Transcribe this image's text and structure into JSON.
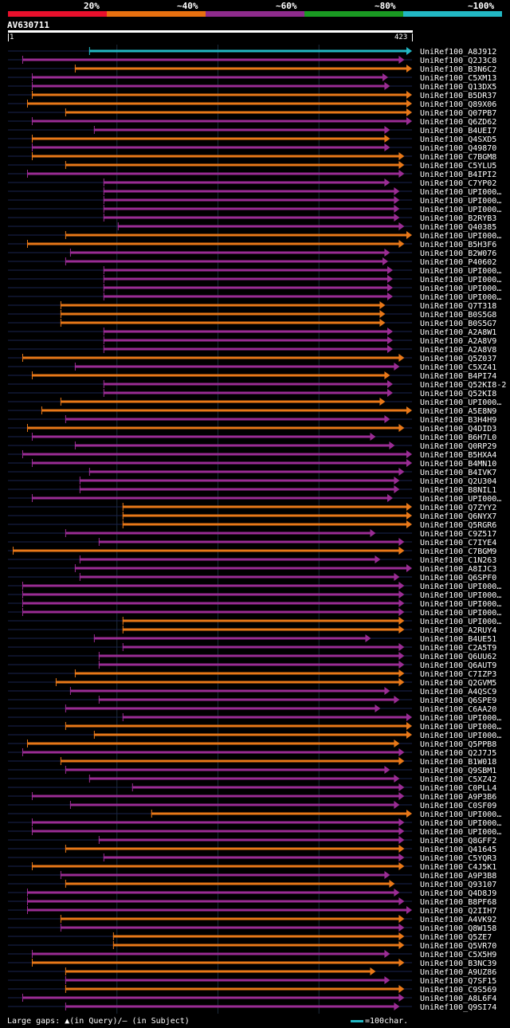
{
  "chart_data": {
    "type": "bar",
    "title": "AV630711",
    "query": {
      "name": "AV630711",
      "start": 1,
      "end": 423
    },
    "identity_scale": [
      {
        "label": "20%",
        "color": "#e8102c"
      },
      {
        "label": "~40%",
        "color": "#e87010"
      },
      {
        "label": "~60%",
        "color": "#8e2b8c"
      },
      {
        "label": "~80%",
        "color": "#1a9a22"
      },
      {
        "label": "~100%",
        "color": "#22b8c4"
      }
    ],
    "x_range": [
      0,
      423
    ],
    "bar_colors": {
      "orange": "#e87818",
      "purple": "#9a2c94",
      "cyan": "#22b8c4"
    },
    "hits": [
      {
        "name": "UniRef100_A8J912",
        "color": "cyan",
        "start": 85,
        "end": 423
      },
      {
        "name": "UniRef100_Q2J3C8",
        "color": "purple",
        "start": 15,
        "end": 415
      },
      {
        "name": "UniRef100_B3N6C2",
        "color": "orange",
        "start": 70,
        "end": 423
      },
      {
        "name": "UniRef100_C5XM13",
        "color": "purple",
        "start": 25,
        "end": 398
      },
      {
        "name": "UniRef100_Q13DX5",
        "color": "purple",
        "start": 25,
        "end": 400
      },
      {
        "name": "UniRef100_B5DR37",
        "color": "orange",
        "start": 25,
        "end": 423
      },
      {
        "name": "UniRef100_Q89X06",
        "color": "orange",
        "start": 20,
        "end": 423
      },
      {
        "name": "UniRef100_Q07PB7",
        "color": "orange",
        "start": 60,
        "end": 423
      },
      {
        "name": "UniRef100_Q6ZD62",
        "color": "purple",
        "start": 25,
        "end": 423
      },
      {
        "name": "UniRef100_B4UEI7",
        "color": "purple",
        "start": 90,
        "end": 400
      },
      {
        "name": "UniRef100_Q4SXD5",
        "color": "orange",
        "start": 25,
        "end": 400
      },
      {
        "name": "UniRef100_Q49870",
        "color": "purple",
        "start": 25,
        "end": 400
      },
      {
        "name": "UniRef100_C7BGM8",
        "color": "orange",
        "start": 25,
        "end": 415
      },
      {
        "name": "UniRef100_C5YLU5",
        "color": "orange",
        "start": 60,
        "end": 415
      },
      {
        "name": "UniRef100_B4IPI2",
        "color": "purple",
        "start": 20,
        "end": 415
      },
      {
        "name": "UniRef100_C7YP02",
        "color": "purple",
        "start": 100,
        "end": 400
      },
      {
        "name": "UniRef100_UPI000…",
        "color": "purple",
        "start": 100,
        "end": 410
      },
      {
        "name": "UniRef100_UPI000…",
        "color": "purple",
        "start": 100,
        "end": 410
      },
      {
        "name": "UniRef100_UPI000…",
        "color": "purple",
        "start": 100,
        "end": 410
      },
      {
        "name": "UniRef100_B2RYB3",
        "color": "purple",
        "start": 100,
        "end": 410
      },
      {
        "name": "UniRef100_Q40385",
        "color": "purple",
        "start": 115,
        "end": 415
      },
      {
        "name": "UniRef100_UPI000…",
        "color": "orange",
        "start": 60,
        "end": 423
      },
      {
        "name": "UniRef100_B5H3F6",
        "color": "orange",
        "start": 20,
        "end": 415
      },
      {
        "name": "UniRef100_B2W076",
        "color": "purple",
        "start": 65,
        "end": 400
      },
      {
        "name": "UniRef100_P40602",
        "color": "purple",
        "start": 60,
        "end": 398
      },
      {
        "name": "UniRef100_UPI000…",
        "color": "purple",
        "start": 100,
        "end": 403
      },
      {
        "name": "UniRef100_UPI000…",
        "color": "purple",
        "start": 100,
        "end": 403
      },
      {
        "name": "UniRef100_UPI000…",
        "color": "purple",
        "start": 100,
        "end": 403
      },
      {
        "name": "UniRef100_UPI000…",
        "color": "purple",
        "start": 100,
        "end": 403
      },
      {
        "name": "UniRef100_Q7T318",
        "color": "orange",
        "start": 55,
        "end": 395
      },
      {
        "name": "UniRef100_B0S5G8",
        "color": "orange",
        "start": 55,
        "end": 395
      },
      {
        "name": "UniRef100_B0S5G7",
        "color": "orange",
        "start": 55,
        "end": 395
      },
      {
        "name": "UniRef100_A2A8W1",
        "color": "purple",
        "start": 100,
        "end": 403
      },
      {
        "name": "UniRef100_A2A8V9",
        "color": "purple",
        "start": 100,
        "end": 403
      },
      {
        "name": "UniRef100_A2A8V8",
        "color": "purple",
        "start": 100,
        "end": 403
      },
      {
        "name": "UniRef100_Q5Z037",
        "color": "orange",
        "start": 15,
        "end": 415
      },
      {
        "name": "UniRef100_C5XZ41",
        "color": "purple",
        "start": 70,
        "end": 410
      },
      {
        "name": "UniRef100_B4PI74",
        "color": "orange",
        "start": 25,
        "end": 400
      },
      {
        "name": "UniRef100_Q52KI8-2",
        "color": "purple",
        "start": 100,
        "end": 403
      },
      {
        "name": "UniRef100_Q52KI8",
        "color": "purple",
        "start": 100,
        "end": 403
      },
      {
        "name": "UniRef100_UPI000…",
        "color": "orange",
        "start": 55,
        "end": 395
      },
      {
        "name": "UniRef100_A5E8N9",
        "color": "orange",
        "start": 35,
        "end": 423
      },
      {
        "name": "UniRef100_B3H4H9",
        "color": "purple",
        "start": 60,
        "end": 400
      },
      {
        "name": "UniRef100_Q4DID3",
        "color": "orange",
        "start": 20,
        "end": 415
      },
      {
        "name": "UniRef100_B6H7L0",
        "color": "purple",
        "start": 25,
        "end": 385
      },
      {
        "name": "UniRef100_Q0RP29",
        "color": "purple",
        "start": 70,
        "end": 405
      },
      {
        "name": "UniRef100_B5HXA4",
        "color": "purple",
        "start": 15,
        "end": 423
      },
      {
        "name": "UniRef100_B4MN10",
        "color": "purple",
        "start": 25,
        "end": 423
      },
      {
        "name": "UniRef100_B4IVK7",
        "color": "purple",
        "start": 85,
        "end": 415
      },
      {
        "name": "UniRef100_Q2U304",
        "color": "purple",
        "start": 75,
        "end": 410
      },
      {
        "name": "UniRef100_B8NIL1",
        "color": "purple",
        "start": 75,
        "end": 410
      },
      {
        "name": "UniRef100_UPI000…",
        "color": "purple",
        "start": 25,
        "end": 403
      },
      {
        "name": "UniRef100_Q7ZYY2",
        "color": "orange",
        "start": 120,
        "end": 423
      },
      {
        "name": "UniRef100_Q6NYX7",
        "color": "orange",
        "start": 120,
        "end": 423
      },
      {
        "name": "UniRef100_Q5RGR6",
        "color": "orange",
        "start": 120,
        "end": 423
      },
      {
        "name": "UniRef100_C9Z517",
        "color": "purple",
        "start": 60,
        "end": 385
      },
      {
        "name": "UniRef100_C7IYE4",
        "color": "purple",
        "start": 95,
        "end": 415
      },
      {
        "name": "UniRef100_C7BGM9",
        "color": "orange",
        "start": 5,
        "end": 415
      },
      {
        "name": "UniRef100_C1N263",
        "color": "purple",
        "start": 75,
        "end": 390
      },
      {
        "name": "UniRef100_A8IJC3",
        "color": "purple",
        "start": 70,
        "end": 423
      },
      {
        "name": "UniRef100_Q6SPF0",
        "color": "purple",
        "start": 75,
        "end": 410
      },
      {
        "name": "UniRef100_UPI000…",
        "color": "purple",
        "start": 15,
        "end": 415
      },
      {
        "name": "UniRef100_UPI000…",
        "color": "purple",
        "start": 15,
        "end": 415
      },
      {
        "name": "UniRef100_UPI000…",
        "color": "purple",
        "start": 15,
        "end": 415
      },
      {
        "name": "UniRef100_UPI000…",
        "color": "purple",
        "start": 15,
        "end": 415
      },
      {
        "name": "UniRef100_UPI000…",
        "color": "orange",
        "start": 120,
        "end": 415
      },
      {
        "name": "UniRef100_A2RUY4",
        "color": "orange",
        "start": 120,
        "end": 415
      },
      {
        "name": "UniRef100_B4UE51",
        "color": "purple",
        "start": 90,
        "end": 380
      },
      {
        "name": "UniRef100_C2A5T9",
        "color": "purple",
        "start": 120,
        "end": 415
      },
      {
        "name": "UniRef100_Q6UU62",
        "color": "purple",
        "start": 95,
        "end": 415
      },
      {
        "name": "UniRef100_Q6AUT9",
        "color": "purple",
        "start": 95,
        "end": 415
      },
      {
        "name": "UniRef100_C7IZP3",
        "color": "orange",
        "start": 70,
        "end": 415
      },
      {
        "name": "UniRef100_Q2GVM5",
        "color": "orange",
        "start": 50,
        "end": 415
      },
      {
        "name": "UniRef100_A4QSC9",
        "color": "purple",
        "start": 65,
        "end": 400
      },
      {
        "name": "UniRef100_Q6SPE9",
        "color": "purple",
        "start": 95,
        "end": 410
      },
      {
        "name": "UniRef100_C6AA20",
        "color": "purple",
        "start": 60,
        "end": 390
      },
      {
        "name": "UniRef100_UPI000…",
        "color": "purple",
        "start": 120,
        "end": 423
      },
      {
        "name": "UniRef100_UPI000…",
        "color": "orange",
        "start": 60,
        "end": 423
      },
      {
        "name": "UniRef100_UPI000…",
        "color": "orange",
        "start": 90,
        "end": 423
      },
      {
        "name": "UniRef100_Q5PPB8",
        "color": "orange",
        "start": 20,
        "end": 410
      },
      {
        "name": "UniRef100_Q2J7J5",
        "color": "purple",
        "start": 15,
        "end": 415
      },
      {
        "name": "UniRef100_B1W018",
        "color": "orange",
        "start": 55,
        "end": 415
      },
      {
        "name": "UniRef100_Q9SBM1",
        "color": "purple",
        "start": 60,
        "end": 400
      },
      {
        "name": "UniRef100_C5XZ42",
        "color": "purple",
        "start": 85,
        "end": 410
      },
      {
        "name": "UniRef100_C0PLL4",
        "color": "purple",
        "start": 130,
        "end": 415
      },
      {
        "name": "UniRef100_A9P3B6",
        "color": "purple",
        "start": 25,
        "end": 415
      },
      {
        "name": "UniRef100_C0SF09",
        "color": "purple",
        "start": 65,
        "end": 410
      },
      {
        "name": "UniRef100_UPI000…",
        "color": "orange",
        "start": 150,
        "end": 423
      },
      {
        "name": "UniRef100_UPI000…",
        "color": "purple",
        "start": 25,
        "end": 415
      },
      {
        "name": "UniRef100_UPI000…",
        "color": "purple",
        "start": 25,
        "end": 415
      },
      {
        "name": "UniRef100_Q8GFF2",
        "color": "purple",
        "start": 95,
        "end": 415
      },
      {
        "name": "UniRef100_Q41645",
        "color": "orange",
        "start": 60,
        "end": 415
      },
      {
        "name": "UniRef100_C5YQR3",
        "color": "purple",
        "start": 100,
        "end": 415
      },
      {
        "name": "UniRef100_C4J5K1",
        "color": "orange",
        "start": 25,
        "end": 415
      },
      {
        "name": "UniRef100_A9P3B8",
        "color": "purple",
        "start": 55,
        "end": 400
      },
      {
        "name": "UniRef100_Q93107",
        "color": "orange",
        "start": 60,
        "end": 405
      },
      {
        "name": "UniRef100_Q4D8J9",
        "color": "purple",
        "start": 20,
        "end": 410
      },
      {
        "name": "UniRef100_B8PF68",
        "color": "purple",
        "start": 20,
        "end": 415
      },
      {
        "name": "UniRef100_Q2IIH7",
        "color": "purple",
        "start": 20,
        "end": 423
      },
      {
        "name": "UniRef100_A4VK92",
        "color": "orange",
        "start": 55,
        "end": 415
      },
      {
        "name": "UniRef100_Q8W158",
        "color": "purple",
        "start": 55,
        "end": 415
      },
      {
        "name": "UniRef100_Q5ZE7",
        "color": "orange",
        "start": 110,
        "end": 415
      },
      {
        "name": "UniRef100_Q5VR70",
        "color": "orange",
        "start": 110,
        "end": 415
      },
      {
        "name": "UniRef100_C5X5H9",
        "color": "purple",
        "start": 25,
        "end": 400
      },
      {
        "name": "UniRef100_B3NC39",
        "color": "orange",
        "start": 25,
        "end": 415
      },
      {
        "name": "UniRef100_A9UZ86",
        "color": "orange",
        "start": 60,
        "end": 385
      },
      {
        "name": "UniRef100_Q7SF15",
        "color": "purple",
        "start": 60,
        "end": 400
      },
      {
        "name": "UniRef100_C9S569",
        "color": "orange",
        "start": 60,
        "end": 415
      },
      {
        "name": "UniRef100_A8L6F4",
        "color": "purple",
        "start": 15,
        "end": 415
      },
      {
        "name": "UniRef100_Q9SI74",
        "color": "purple",
        "start": 60,
        "end": 410
      }
    ]
  },
  "footer": {
    "legend": "Large gaps: ▲(in Query)/— (in Subject)",
    "scale_label": "=100char."
  }
}
